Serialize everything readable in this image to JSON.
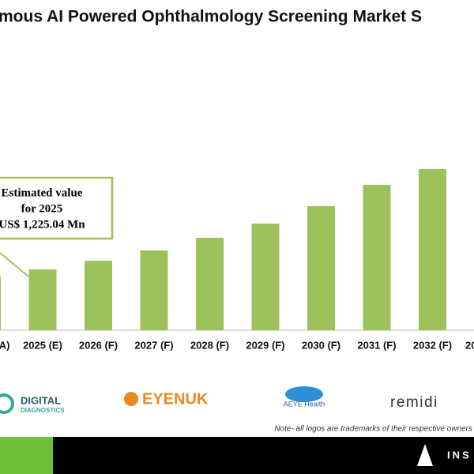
{
  "chart_data": {
    "type": "bar",
    "title": "mous AI Powered Ophthalmology Screening Market S",
    "categories": [
      "A)",
      "2025 (E)",
      "2026 (F)",
      "2027 (F)",
      "2028 (F)",
      "2029 (F)",
      "2030 (F)",
      "2031 (F)",
      "2032 (F)",
      "20"
    ],
    "values": [
      1082,
      1225.04,
      1400,
      1607,
      1861,
      2148,
      2498,
      2927,
      3246,
      null
    ],
    "color": "#9dc15b",
    "ylim": [
      0,
      6650
    ],
    "annotation": [
      "Estimated value",
      "for 2025",
      "US$ 1,225.04 Mn"
    ]
  },
  "logos": [
    "DIGITAL",
    "DIAGNOSTICS",
    "EYENUK",
    "AEYE Health",
    "remidi"
  ],
  "note": "Note- all logos are trademarks of their respective owners",
  "footer": "INS"
}
